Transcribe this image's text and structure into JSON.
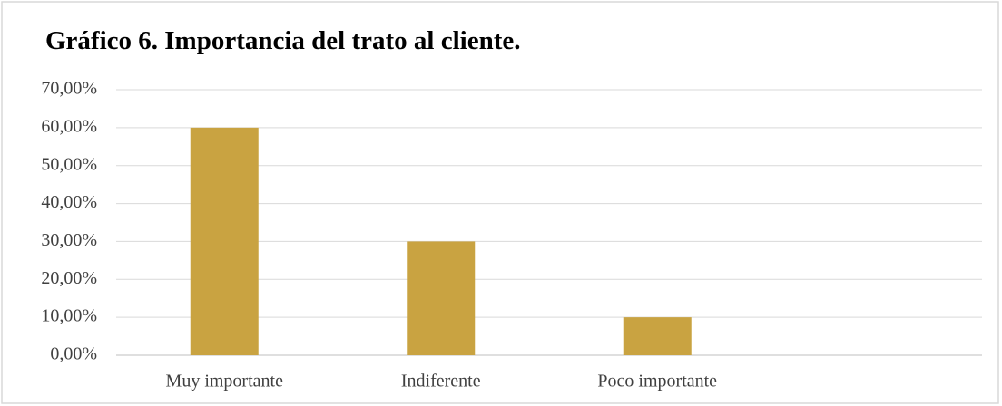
{
  "chart_data": {
    "type": "bar",
    "title": "Gráfico 6. Importancia del trato al cliente.",
    "categories": [
      "Muy importante",
      "Indiferente",
      "Poco importante",
      null
    ],
    "values": [
      60,
      30,
      10,
      null
    ],
    "color": "#c9a341",
    "ylim": [
      0,
      70
    ],
    "yticks": [
      {
        "value": 0,
        "label": "0,00%"
      },
      {
        "value": 10,
        "label": "10,00%"
      },
      {
        "value": 20,
        "label": "20,00%"
      },
      {
        "value": 30,
        "label": "30,00%"
      },
      {
        "value": 40,
        "label": "40,00%"
      },
      {
        "value": 50,
        "label": "50,00%"
      },
      {
        "value": 60,
        "label": "60,00%"
      },
      {
        "value": 70,
        "label": "70,00%"
      }
    ],
    "grid": true
  }
}
